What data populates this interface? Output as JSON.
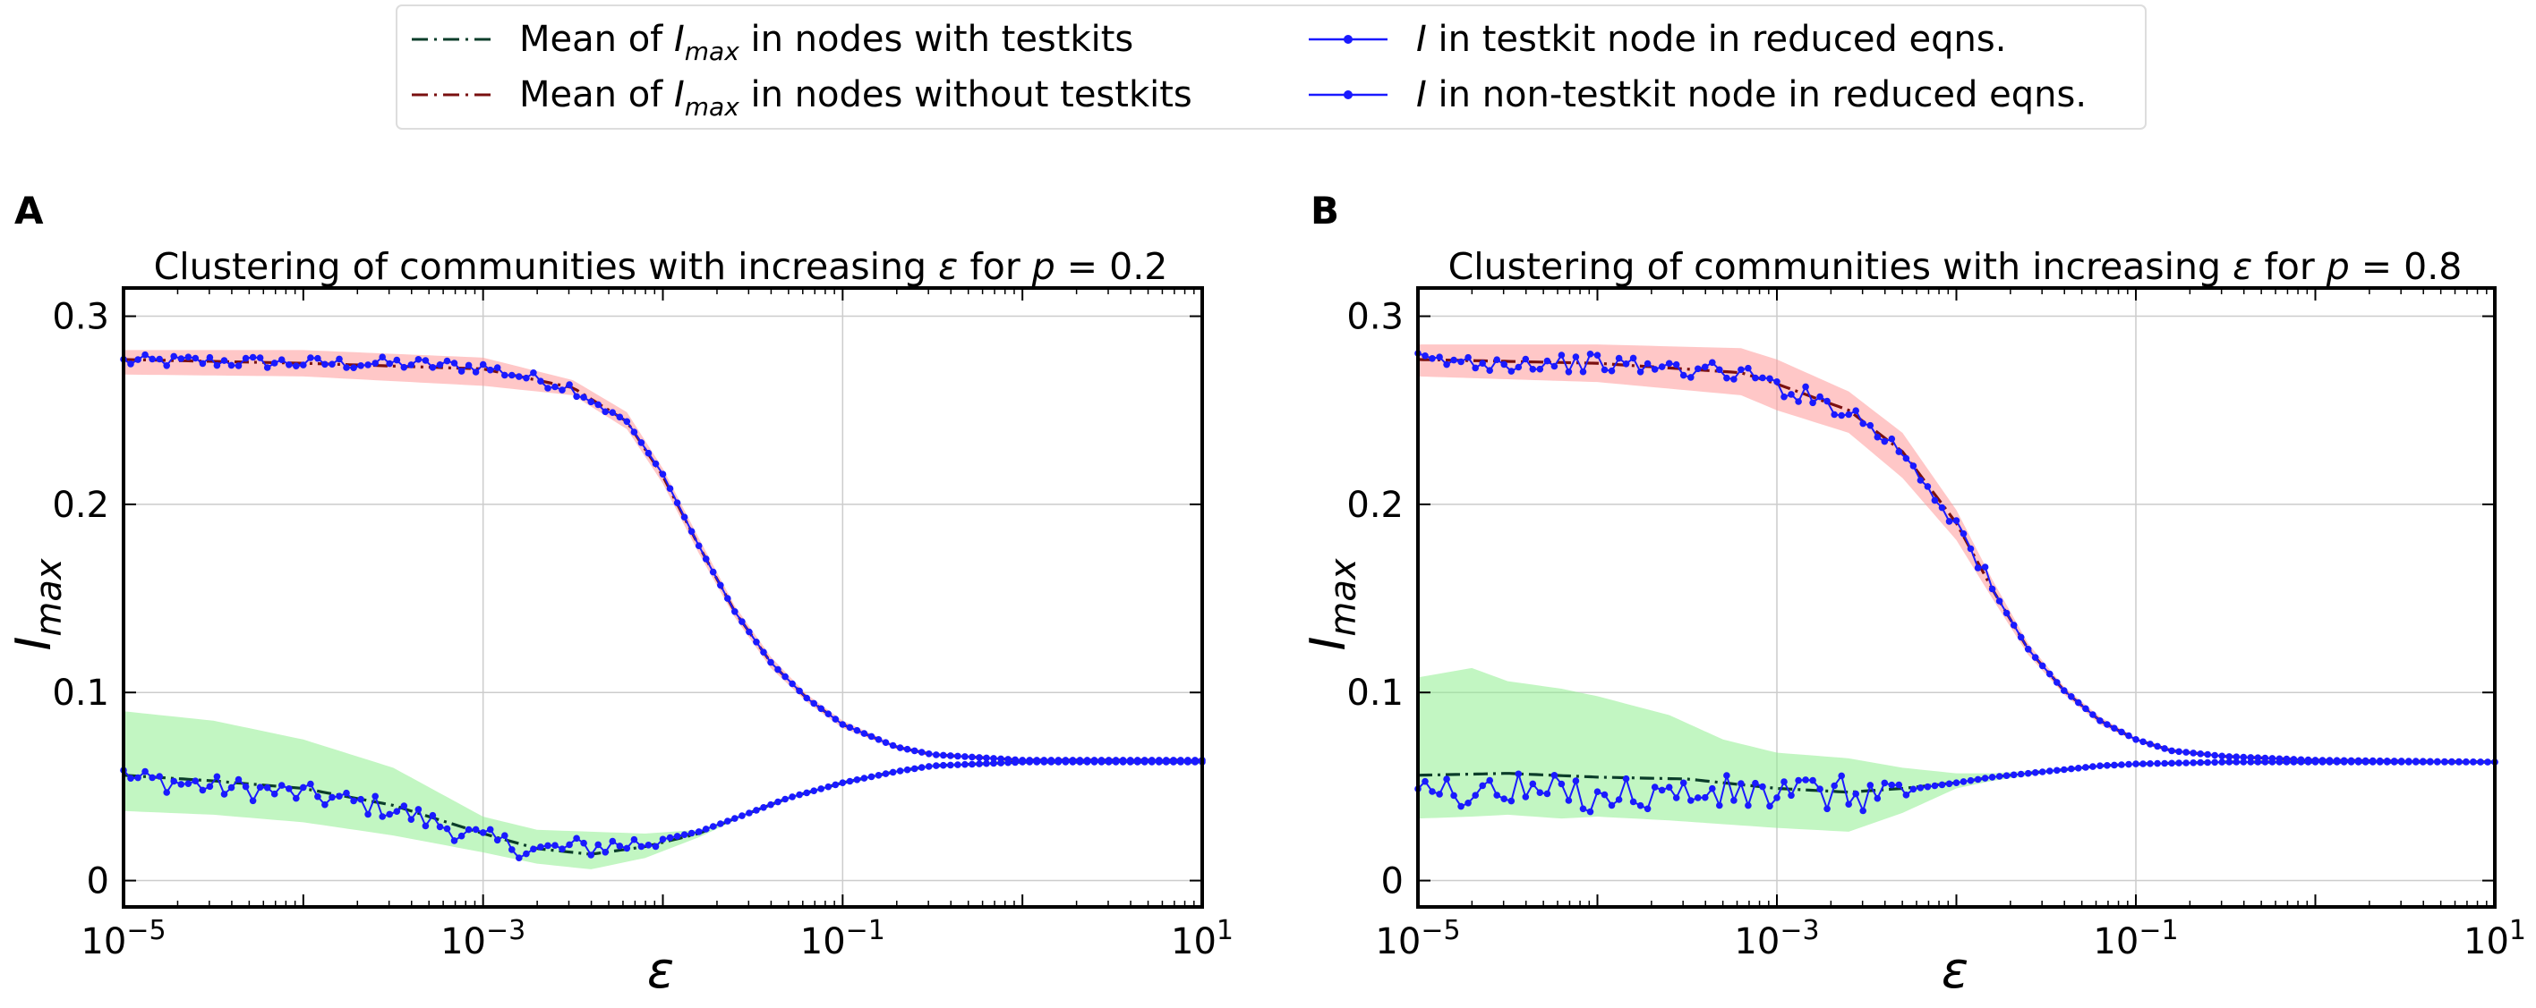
{
  "legend": {
    "entries": [
      {
        "prefix": "Mean of ",
        "sym": "I",
        "sub": "max",
        "suffix": " in nodes with testkits",
        "color": "#0b3d2a",
        "style": "dashdot"
      },
      {
        "prefix": "Mean of ",
        "sym": "I",
        "sub": "max",
        "suffix": " in nodes without testkits",
        "color": "#7a1010",
        "style": "dashdot"
      },
      {
        "prefix": "",
        "sym": "I",
        "sub": "",
        "suffix": " in testkit node in reduced eqns.",
        "color": "#1a1aff",
        "style": "line-marker"
      },
      {
        "prefix": "",
        "sym": "I",
        "sub": "",
        "suffix": " in non-testkit node in reduced eqns.",
        "color": "#1a1aff",
        "style": "line-marker"
      }
    ]
  },
  "colors": {
    "testkit_mean": "#0b3d2a",
    "nontestkit_mean": "#7a1010",
    "reduced": "#1a1aff",
    "band_testkit": "#90ee90",
    "band_nontestkit": "#ff9999"
  },
  "chart_data": [
    {
      "panel_label": "A",
      "type": "line",
      "title_prefix": "Clustering of communities with increasing ",
      "title_eps": "ε",
      "title_mid": " for ",
      "title_p": "p",
      "title_eq": " = 0.2",
      "xlabel": "ε",
      "ylabel_sym": "I",
      "ylabel_sub": "max",
      "x_scale": "log",
      "xlim": [
        1e-05,
        10
      ],
      "ylim": [
        -0.014,
        0.315
      ],
      "x_ticks": [
        {
          "base": "10",
          "exp": "−5"
        },
        {
          "base": "10",
          "exp": "−3"
        },
        {
          "base": "10",
          "exp": "−1"
        },
        {
          "base": "10",
          "exp": "1"
        }
      ],
      "y_ticks": [
        "0",
        "0.1",
        "0.2",
        "0.3"
      ],
      "grid": true,
      "mean_without_testkits": {
        "log10_eps": [
          -5,
          -4,
          -3,
          -2.5,
          -2.2,
          -2,
          -1.8,
          -1.6,
          -1.4,
          -1.2,
          -1,
          -0.7,
          -0.5,
          0,
          1
        ],
        "values": [
          0.277,
          0.275,
          0.272,
          0.262,
          0.244,
          0.215,
          0.178,
          0.143,
          0.116,
          0.097,
          0.083,
          0.071,
          0.067,
          0.064,
          0.064
        ]
      },
      "band_without_testkits": {
        "log10_eps": [
          -5,
          -4,
          -3,
          -2.5,
          -2.2,
          -2,
          -1.8,
          -1.6,
          -1.4,
          -1.2,
          -1,
          -0.7,
          -0.5,
          0,
          1
        ],
        "upper": [
          0.282,
          0.282,
          0.278,
          0.266,
          0.249,
          0.219,
          0.182,
          0.146,
          0.119,
          0.099,
          0.085,
          0.072,
          0.068,
          0.065,
          0.065
        ],
        "lower": [
          0.269,
          0.268,
          0.263,
          0.258,
          0.24,
          0.211,
          0.174,
          0.14,
          0.113,
          0.095,
          0.081,
          0.07,
          0.066,
          0.063,
          0.063
        ]
      },
      "mean_with_testkits": {
        "log10_eps": [
          -5,
          -4.5,
          -4,
          -3.5,
          -3,
          -2.7,
          -2.4,
          -2.1,
          -1.8,
          -1.6,
          -1.3,
          -1,
          -0.7,
          -0.5,
          0,
          1
        ],
        "values": [
          0.056,
          0.053,
          0.049,
          0.04,
          0.025,
          0.017,
          0.014,
          0.018,
          0.025,
          0.033,
          0.044,
          0.052,
          0.058,
          0.061,
          0.063,
          0.063
        ]
      },
      "band_with_testkits": {
        "log10_eps": [
          -5,
          -4.5,
          -4,
          -3.5,
          -3,
          -2.7,
          -2.4,
          -2.1,
          -1.8,
          -1.6,
          -1.3,
          -1,
          -0.7,
          -0.5,
          0,
          1
        ],
        "upper": [
          0.09,
          0.085,
          0.075,
          0.06,
          0.034,
          0.027,
          0.026,
          0.025,
          0.027,
          0.034,
          0.045,
          0.053,
          0.059,
          0.062,
          0.064,
          0.064
        ],
        "lower": [
          0.037,
          0.035,
          0.031,
          0.024,
          0.015,
          0.009,
          0.006,
          0.012,
          0.023,
          0.032,
          0.043,
          0.051,
          0.057,
          0.06,
          0.062,
          0.062
        ]
      },
      "reduced_nontestkit": {
        "log10_eps": [
          -5,
          -4.5,
          -4,
          -3.5,
          -3,
          -2.5,
          -2.2,
          -2,
          -1.8,
          -1.6,
          -1.4,
          -1.2,
          -1,
          -0.7,
          -0.5,
          0,
          1
        ],
        "values": [
          0.276,
          0.276,
          0.275,
          0.275,
          0.273,
          0.262,
          0.244,
          0.216,
          0.178,
          0.143,
          0.116,
          0.097,
          0.083,
          0.071,
          0.067,
          0.064,
          0.064
        ],
        "noise": 0.0035,
        "noise_until": -2.3
      },
      "reduced_testkit": {
        "log10_eps": [
          -5,
          -4.5,
          -4,
          -3.5,
          -3,
          -2.7,
          -2.4,
          -2.1,
          -1.8,
          -1.6,
          -1.3,
          -1,
          -0.7,
          -0.5,
          0,
          1
        ],
        "values": [
          0.055,
          0.05,
          0.046,
          0.038,
          0.022,
          0.016,
          0.018,
          0.02,
          0.026,
          0.033,
          0.044,
          0.052,
          0.058,
          0.061,
          0.063,
          0.063
        ],
        "noise": 0.006,
        "noise_until": -2.0
      }
    },
    {
      "panel_label": "B",
      "type": "line",
      "title_prefix": "Clustering of communities with increasing ",
      "title_eps": "ε",
      "title_mid": " for ",
      "title_p": "p",
      "title_eq": " = 0.8",
      "xlabel": "ε",
      "ylabel_sym": "I",
      "ylabel_sub": "max",
      "x_scale": "log",
      "xlim": [
        1e-05,
        10
      ],
      "ylim": [
        -0.014,
        0.315
      ],
      "x_ticks": [
        {
          "base": "10",
          "exp": "−5"
        },
        {
          "base": "10",
          "exp": "−3"
        },
        {
          "base": "10",
          "exp": "−1"
        },
        {
          "base": "10",
          "exp": "1"
        }
      ],
      "y_ticks": [
        "0",
        "0.1",
        "0.2",
        "0.3"
      ],
      "grid": true,
      "mean_without_testkits": {
        "log10_eps": [
          -5,
          -4,
          -3.2,
          -3,
          -2.6,
          -2.3,
          -2,
          -1.8,
          -1.6,
          -1.4,
          -1.2,
          -1,
          -0.8,
          -0.5,
          0,
          1
        ],
        "values": [
          0.277,
          0.275,
          0.27,
          0.264,
          0.25,
          0.228,
          0.19,
          0.155,
          0.123,
          0.101,
          0.085,
          0.075,
          0.069,
          0.066,
          0.064,
          0.063
        ]
      },
      "band_without_testkits": {
        "log10_eps": [
          -5,
          -4,
          -3.2,
          -3,
          -2.6,
          -2.3,
          -2,
          -1.8,
          -1.6,
          -1.4,
          -1.2,
          -1,
          -0.8,
          -0.5,
          0,
          1
        ],
        "upper": [
          0.285,
          0.285,
          0.283,
          0.277,
          0.26,
          0.238,
          0.197,
          0.16,
          0.126,
          0.103,
          0.087,
          0.076,
          0.07,
          0.067,
          0.065,
          0.064
        ],
        "lower": [
          0.268,
          0.265,
          0.258,
          0.25,
          0.238,
          0.214,
          0.181,
          0.15,
          0.12,
          0.099,
          0.083,
          0.074,
          0.068,
          0.065,
          0.063,
          0.062
        ]
      },
      "mean_with_testkits": {
        "log10_eps": [
          -5,
          -4.5,
          -4,
          -3.5,
          -3,
          -2.6,
          -2.3,
          -2,
          -1.8,
          -1.5,
          -1.2,
          -1,
          -0.5,
          0,
          1
        ],
        "values": [
          0.056,
          0.057,
          0.055,
          0.054,
          0.049,
          0.047,
          0.049,
          0.052,
          0.055,
          0.058,
          0.061,
          0.062,
          0.063,
          0.063,
          0.063
        ]
      },
      "band_with_testkits": {
        "log10_eps": [
          -5,
          -4.7,
          -4.5,
          -4.2,
          -4,
          -3.6,
          -3.3,
          -3,
          -2.6,
          -2.3,
          -2,
          -1.8,
          -1.5,
          -1.2,
          -1,
          -0.5,
          0,
          1
        ],
        "upper": [
          0.108,
          0.113,
          0.106,
          0.102,
          0.098,
          0.088,
          0.075,
          0.068,
          0.065,
          0.06,
          0.057,
          0.057,
          0.059,
          0.061,
          0.062,
          0.063,
          0.063,
          0.063
        ],
        "lower": [
          0.033,
          0.034,
          0.035,
          0.033,
          0.034,
          0.032,
          0.03,
          0.028,
          0.026,
          0.036,
          0.049,
          0.053,
          0.057,
          0.06,
          0.061,
          0.062,
          0.062,
          0.062
        ]
      },
      "reduced_nontestkit": {
        "log10_eps": [
          -5,
          -4,
          -3.2,
          -3,
          -2.6,
          -2.3,
          -2,
          -1.8,
          -1.6,
          -1.4,
          -1.2,
          -1,
          -0.8,
          -0.5,
          0,
          1
        ],
        "values": [
          0.276,
          0.275,
          0.27,
          0.263,
          0.25,
          0.228,
          0.19,
          0.155,
          0.123,
          0.101,
          0.085,
          0.075,
          0.069,
          0.066,
          0.064,
          0.063
        ],
        "noise": 0.005,
        "noise_until": -1.8
      },
      "reduced_testkit": {
        "log10_eps": [
          -5,
          -4.5,
          -4,
          -3.5,
          -3,
          -2.6,
          -2.3,
          -2,
          -1.8,
          -1.5,
          -1.2,
          -1,
          -0.5,
          0,
          1
        ],
        "values": [
          0.048,
          0.047,
          0.046,
          0.046,
          0.046,
          0.046,
          0.048,
          0.052,
          0.055,
          0.058,
          0.061,
          0.062,
          0.063,
          0.063,
          0.063
        ],
        "noise": 0.01,
        "noise_until": -2.2
      }
    }
  ]
}
